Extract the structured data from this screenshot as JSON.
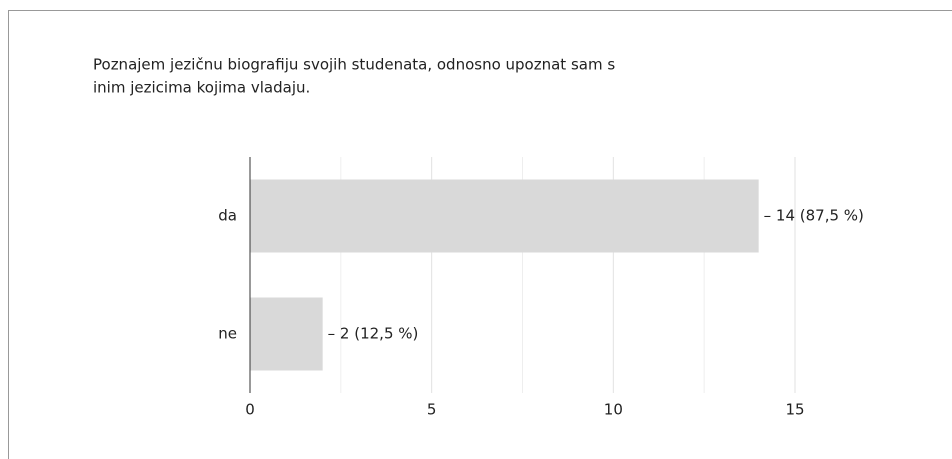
{
  "chart_data": {
    "type": "bar",
    "orientation": "horizontal",
    "title": [
      "Poznajem jezičnu biografiju svojih studenata, odnosno upoznat sam s",
      "inim jezicima kojima vladaju."
    ],
    "categories": [
      "da",
      "ne"
    ],
    "values": [
      14,
      2
    ],
    "value_labels": [
      "– 14 (87,5 %)",
      "– 2 (12,5 %)"
    ],
    "color": "#d9d9d9",
    "xlim": [
      0,
      15
    ],
    "xticks": [
      0,
      5,
      10,
      15
    ],
    "xminor": [
      2.5,
      7.5,
      12.5
    ],
    "grid": true
  }
}
